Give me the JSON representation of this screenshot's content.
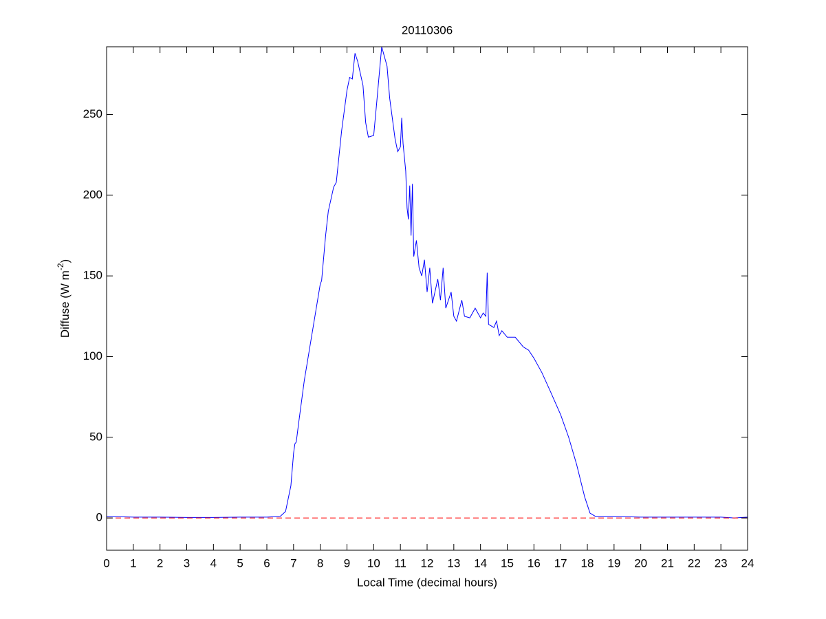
{
  "chart_data": {
    "type": "line",
    "title": "20110306",
    "xlabel": "Local Time (decimal hours)",
    "ylabel": [
      "Diffuse (W m",
      "-2",
      ")"
    ],
    "xlim": [
      0,
      24
    ],
    "ylim": [
      -20,
      292
    ],
    "xticks": [
      0,
      1,
      2,
      3,
      4,
      5,
      6,
      7,
      8,
      9,
      10,
      11,
      12,
      13,
      14,
      15,
      16,
      17,
      18,
      19,
      20,
      21,
      22,
      23,
      24
    ],
    "yticks": [
      0,
      50,
      100,
      150,
      200,
      250
    ],
    "series": [
      {
        "color": "#0000ff",
        "dash": false,
        "x": [
          0,
          1,
          2,
          3,
          4,
          5,
          6,
          6.5,
          6.7,
          6.9,
          7.0,
          7.05,
          7.1,
          7.2,
          7.4,
          7.6,
          7.8,
          8.0,
          8.05,
          8.2,
          8.3,
          8.5,
          8.6,
          8.8,
          9.0,
          9.1,
          9.2,
          9.3,
          9.4,
          9.6,
          9.7,
          9.8,
          10.0,
          10.1,
          10.3,
          10.5,
          10.6,
          10.8,
          10.9,
          11.0,
          11.05,
          11.1,
          11.2,
          11.25,
          11.3,
          11.35,
          11.4,
          11.45,
          11.5,
          11.6,
          11.7,
          11.8,
          11.9,
          12.0,
          12.1,
          12.2,
          12.4,
          12.5,
          12.6,
          12.7,
          12.9,
          13.0,
          13.1,
          13.3,
          13.4,
          13.6,
          13.8,
          14.0,
          14.1,
          14.2,
          14.25,
          14.3,
          14.5,
          14.6,
          14.7,
          14.8,
          15.0,
          15.3,
          15.6,
          15.8,
          16.0,
          16.3,
          16.6,
          17.0,
          17.3,
          17.6,
          17.9,
          18.1,
          18.3,
          18.5,
          19,
          20,
          21,
          22,
          23,
          23.5,
          24
        ],
        "values": [
          1,
          0.5,
          0.5,
          0.3,
          0.3,
          0.5,
          0.5,
          1,
          4,
          20,
          40,
          46,
          47,
          60,
          85,
          105,
          125,
          145,
          147,
          175,
          190,
          205,
          208,
          240,
          265,
          273,
          272,
          288,
          283,
          268,
          245,
          236,
          237,
          255,
          292,
          280,
          260,
          235,
          227,
          230,
          248,
          232,
          215,
          192,
          185,
          206,
          175,
          207,
          162,
          172,
          155,
          150,
          160,
          140,
          155,
          133,
          148,
          135,
          155,
          130,
          140,
          125,
          122,
          135,
          125,
          124,
          130,
          124,
          127,
          125,
          152,
          120,
          118,
          122,
          113,
          116,
          112,
          112,
          106,
          104,
          99,
          90,
          79,
          64,
          50,
          33,
          13,
          3,
          1,
          1,
          1,
          0.5,
          0.5,
          0.5,
          0.5,
          0,
          0.5
        ]
      },
      {
        "color": "#ff0000",
        "dash": true,
        "x": [
          0,
          24
        ],
        "values": [
          0,
          0
        ]
      }
    ]
  }
}
